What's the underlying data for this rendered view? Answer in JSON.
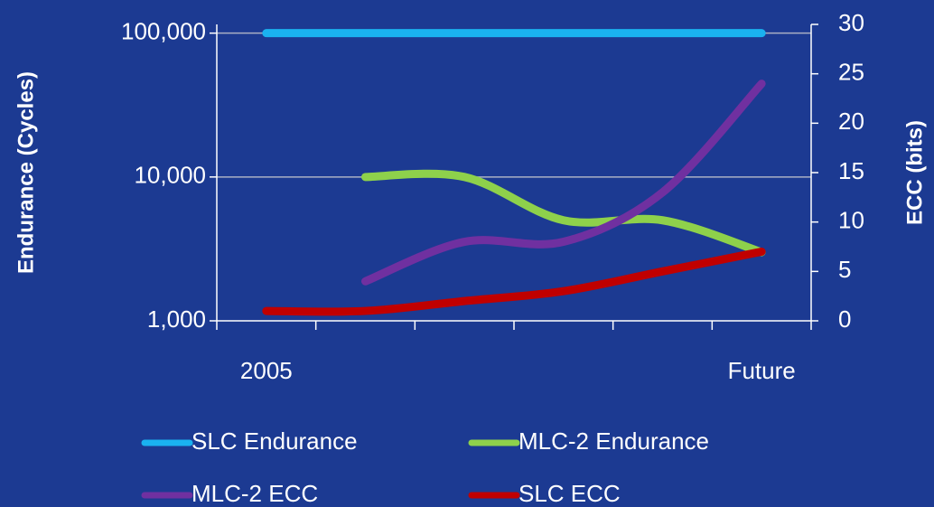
{
  "chart_data": {
    "type": "line",
    "categories": [
      "2005",
      null,
      null,
      null,
      null,
      "Future"
    ],
    "series": [
      {
        "name": "SLC Endurance",
        "color": "#1ab2f0",
        "values": [
          100000,
          100000,
          100000,
          100000,
          100000,
          100000
        ]
      },
      {
        "name": "MLC-2 Endurance",
        "color": "#8ed14b",
        "values": [
          null,
          10000,
          10000,
          5000,
          5000,
          3000
        ]
      },
      {
        "name": "MLC-2 ECC",
        "color": "#7030a0",
        "axis": "y2",
        "values": [
          null,
          4,
          8,
          8,
          13,
          24
        ]
      },
      {
        "name": "SLC ECC",
        "color": "#c00000",
        "axis": "y2",
        "values": [
          1,
          1,
          2,
          3,
          5,
          7
        ]
      }
    ],
    "ylabel": "Endurance (Cycles)",
    "y2label": "ECC (bits)",
    "ylog": true,
    "ylim": [
      1000,
      115000
    ],
    "yticks": [
      {
        "value": 1000,
        "label": "1,000"
      },
      {
        "value": 10000,
        "label": "10,000"
      },
      {
        "value": 100000,
        "label": "100,000"
      }
    ],
    "y2lim": [
      0,
      30
    ],
    "y2ticks": [
      0,
      5,
      10,
      15,
      20,
      25,
      30
    ],
    "grid": true,
    "legend": "bottom"
  }
}
